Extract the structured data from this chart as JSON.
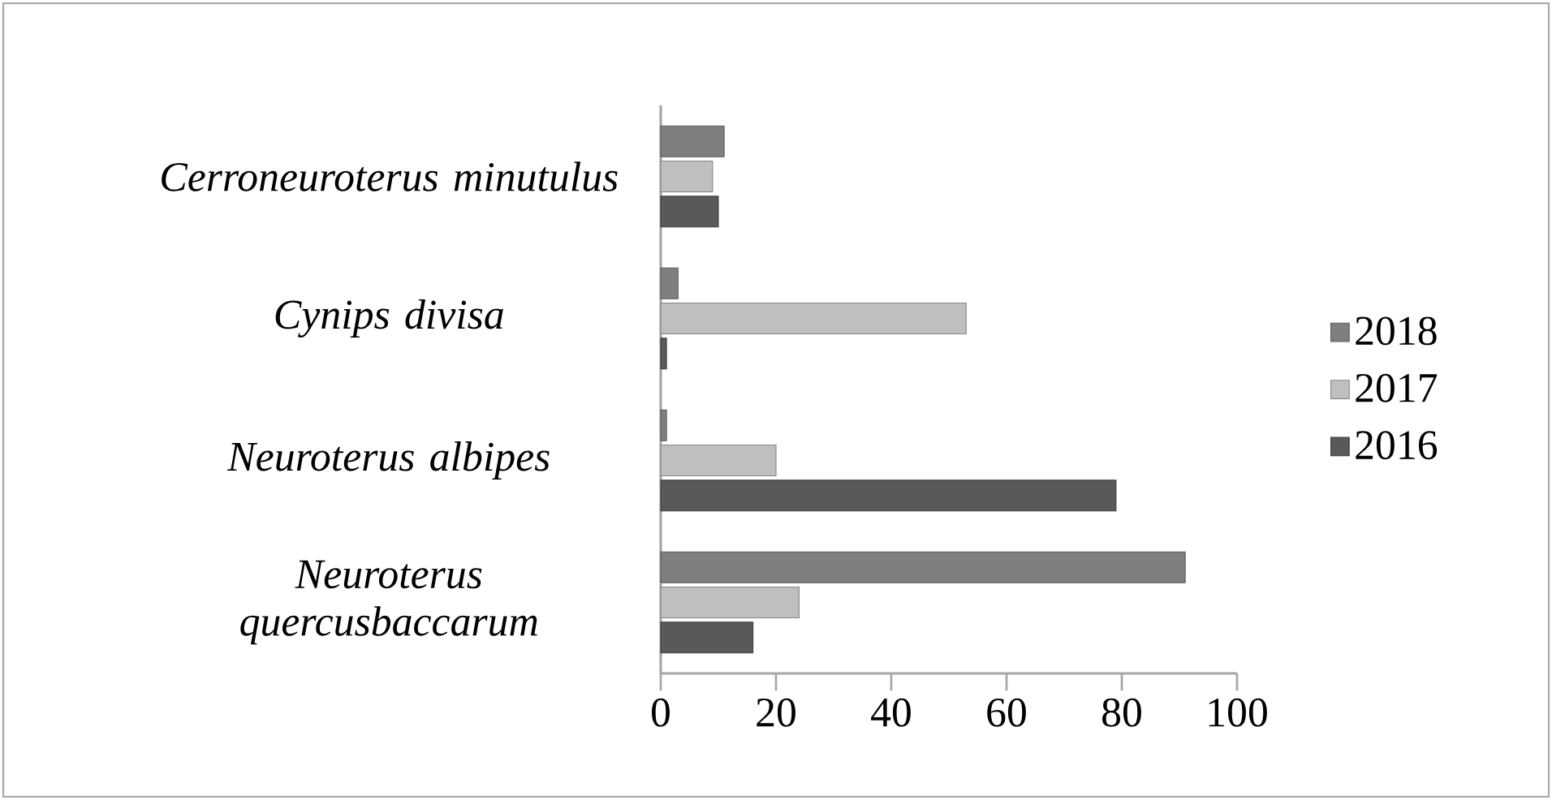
{
  "chart_data": {
    "type": "bar",
    "orientation": "horizontal",
    "categories": [
      "*Cerroneuroterus minutulus*",
      "*Cynips divisa*",
      "*Neuroterus albipes*",
      "*Neuroterus quercusbaccarum*"
    ],
    "series": [
      {
        "name": "2016",
        "color": "#595959",
        "values": [
          10,
          1,
          79,
          16
        ]
      },
      {
        "name": "2017",
        "color": "#bfbfbf",
        "values": [
          9,
          53,
          20,
          24
        ]
      },
      {
        "name": "2018",
        "color": "#7f7f7f",
        "values": [
          11,
          3,
          1,
          91
        ]
      }
    ],
    "xlim": [
      0,
      100
    ],
    "xticks": [
      0,
      20,
      40,
      60,
      80,
      100
    ],
    "grid": false,
    "legend": "right"
  }
}
